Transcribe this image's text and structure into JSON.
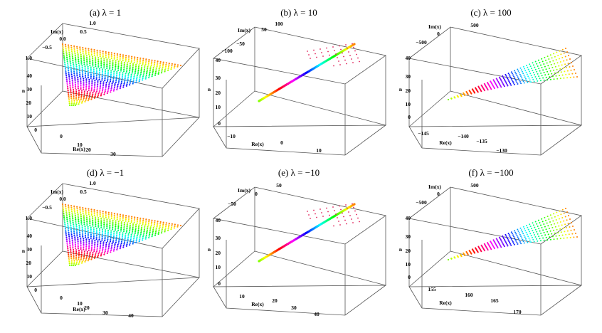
{
  "panels": [
    {
      "title": "(a) λ = 1",
      "box": "thick",
      "cloud": "triangle",
      "labels": {
        "x": "Re(x)",
        "y": "Im(x)",
        "z": "n"
      },
      "ticks": {
        "x": [
          "0",
          "10",
          "20",
          "30"
        ],
        "y": [
          "−0.5",
          "0.0",
          "0.5",
          "1.0"
        ],
        "z": [
          "0",
          "10",
          "20",
          "30",
          "40",
          "1.0"
        ]
      }
    },
    {
      "title": "(b) λ = 10",
      "box": "flat",
      "cloud": "line",
      "labels": {
        "x": "Re(x)",
        "y": "Im(x)",
        "z": "n"
      },
      "ticks": {
        "x": [
          "−10",
          "0",
          "10"
        ],
        "y": [
          "−100",
          "−50",
          "50",
          "100"
        ],
        "z": [
          "0",
          "10",
          "20",
          "30",
          "40"
        ]
      }
    },
    {
      "title": "(c) λ = 100",
      "box": "flat",
      "cloud": "fan",
      "labels": {
        "x": "Re(x)",
        "y": "Im(x)",
        "z": "n"
      },
      "ticks": {
        "x": [
          "−145",
          "−140",
          "−135",
          "−130"
        ],
        "y": [
          "−500",
          "0",
          "500"
        ],
        "z": [
          "0",
          "10",
          "20",
          "30",
          "40"
        ]
      }
    },
    {
      "title": "(d) λ = −1",
      "box": "thick",
      "cloud": "triangle",
      "labels": {
        "x": "Re(x)",
        "y": "Im(x)",
        "z": "n"
      },
      "ticks": {
        "x": [
          "0",
          "10",
          "20",
          "30",
          "40"
        ],
        "y": [
          "−0.5",
          "0.0",
          "0.5",
          "1.0"
        ],
        "z": [
          "0",
          "10",
          "20",
          "30",
          "40",
          "1.0"
        ]
      }
    },
    {
      "title": "(e) λ = −10",
      "box": "flat",
      "cloud": "line",
      "labels": {
        "x": "Re(x)",
        "y": "Im(x)",
        "z": "n"
      },
      "ticks": {
        "x": [
          "10",
          "20",
          "30",
          "40"
        ],
        "y": [
          "−50",
          "0",
          "50"
        ],
        "z": [
          "0",
          "10",
          "20",
          "30",
          "40"
        ]
      }
    },
    {
      "title": "(f) λ = −100",
      "box": "flat",
      "cloud": "fan",
      "labels": {
        "x": "Re(x)",
        "y": "Im(x)",
        "z": "n"
      },
      "ticks": {
        "x": [
          "155",
          "160",
          "165",
          "170"
        ],
        "y": [
          "−500",
          "0",
          "500"
        ],
        "z": [
          "0",
          "10",
          "20",
          "30",
          "40"
        ]
      }
    }
  ],
  "chart_data": [
    {
      "type": "scatter",
      "title": "(a) λ = 1",
      "xlabel": "Re(x)",
      "ylabel": "Im(x)",
      "zlabel": "n",
      "xlim": [
        0,
        35
      ],
      "ylim": [
        -0.5,
        1.0
      ],
      "zlim": [
        0,
        40
      ],
      "colormap": "rainbow by n"
    },
    {
      "type": "scatter",
      "title": "(b) λ = 10",
      "xlabel": "Re(x)",
      "ylabel": "Im(x)",
      "zlabel": "n",
      "xlim": [
        -10,
        10
      ],
      "ylim": [
        -100,
        100
      ],
      "zlim": [
        0,
        40
      ],
      "colormap": "rainbow by n"
    },
    {
      "type": "scatter",
      "title": "(c) λ = 100",
      "xlabel": "Re(x)",
      "ylabel": "Im(x)",
      "zlabel": "n",
      "xlim": [
        -145,
        -130
      ],
      "ylim": [
        -500,
        500
      ],
      "zlim": [
        0,
        40
      ],
      "colormap": "rainbow by n"
    },
    {
      "type": "scatter",
      "title": "(d) λ = −1",
      "xlabel": "Re(x)",
      "ylabel": "Im(x)",
      "zlabel": "n",
      "xlim": [
        0,
        40
      ],
      "ylim": [
        -0.5,
        1.0
      ],
      "zlim": [
        0,
        40
      ],
      "colormap": "rainbow by n"
    },
    {
      "type": "scatter",
      "title": "(e) λ = −10",
      "xlabel": "Re(x)",
      "ylabel": "Im(x)",
      "zlabel": "n",
      "xlim": [
        10,
        40
      ],
      "ylim": [
        -50,
        50
      ],
      "zlim": [
        0,
        40
      ],
      "colormap": "rainbow by n"
    },
    {
      "type": "scatter",
      "title": "(f) λ = −100",
      "xlabel": "Re(x)",
      "ylabel": "Im(x)",
      "zlabel": "n",
      "xlim": [
        155,
        170
      ],
      "ylim": [
        -500,
        500
      ],
      "zlim": [
        0,
        40
      ],
      "colormap": "rainbow by n"
    }
  ]
}
